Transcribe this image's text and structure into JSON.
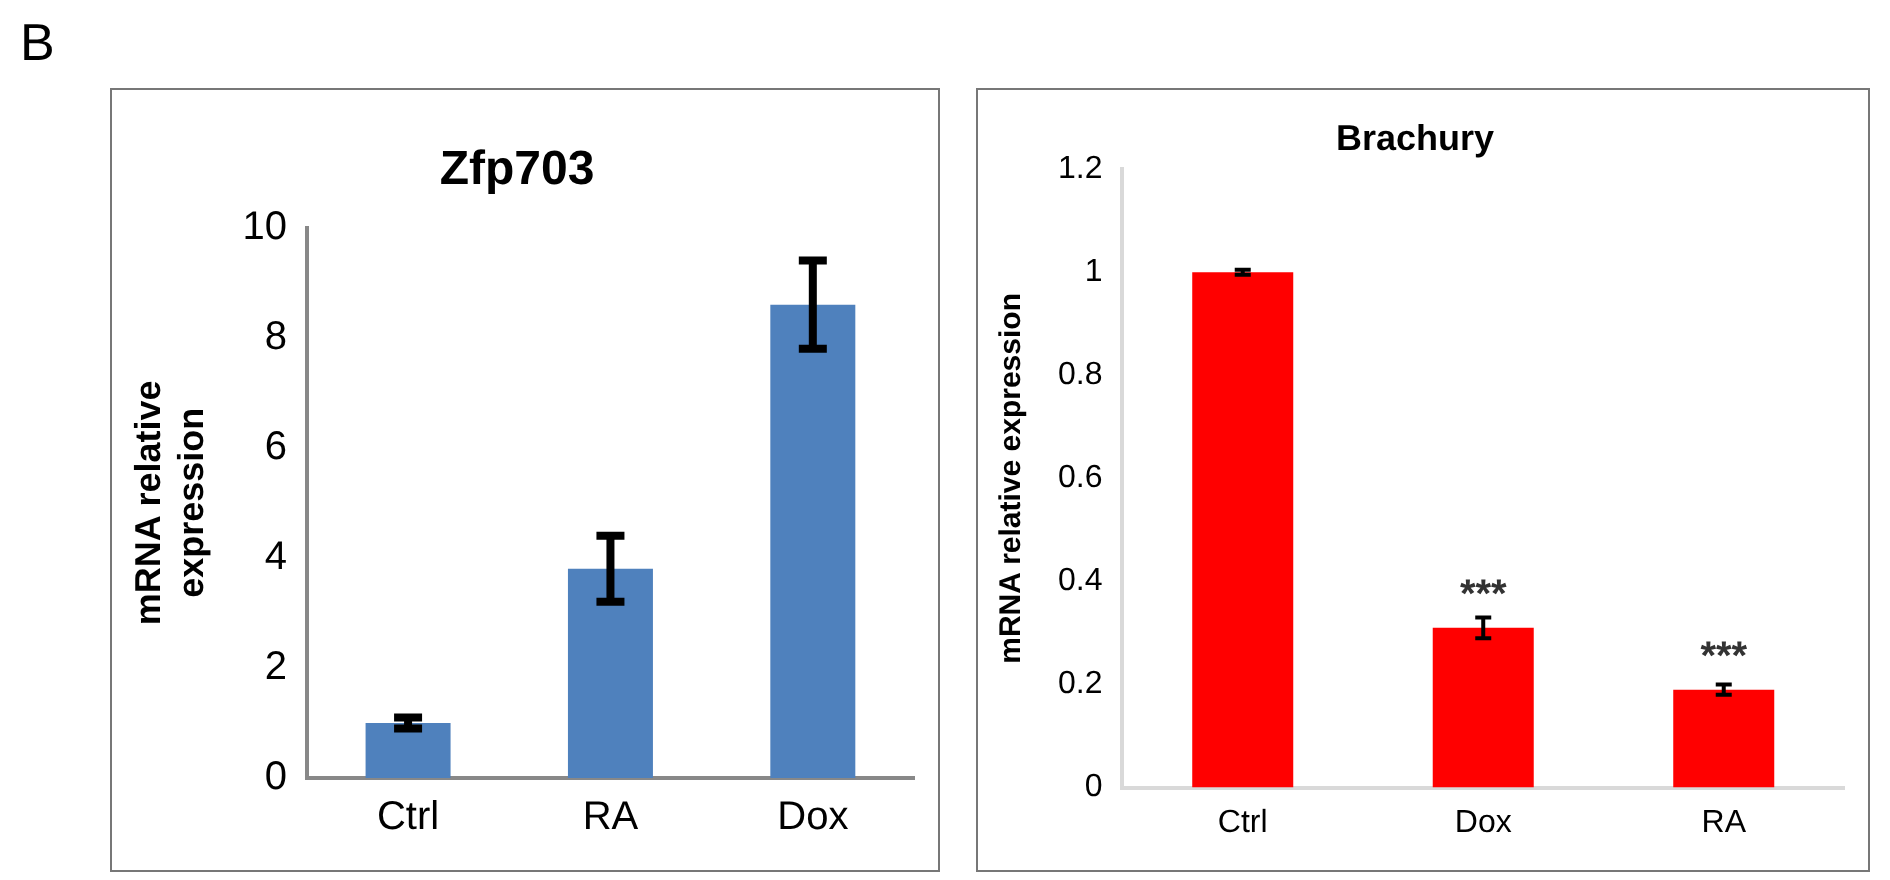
{
  "chart_data": [
    {
      "type": "bar",
      "title": "Zfp703",
      "ylabel": "mRNA relative expression",
      "annotations": [
        "B"
      ],
      "categories": [
        "Ctrl",
        "RA",
        "Dox"
      ],
      "series": [
        {
          "color": "#4f81bd",
          "values": [
            1.0,
            3.8,
            8.6
          ],
          "errors": [
            0.1,
            0.6,
            0.8
          ]
        }
      ],
      "ylim": [
        0,
        10
      ],
      "yticks": [
        0,
        2,
        4,
        6,
        8,
        10
      ],
      "grid": false
    },
    {
      "type": "bar",
      "title": "Brachury",
      "ylabel": "mRNA relative expression",
      "categories": [
        "Ctrl",
        "Dox",
        "RA"
      ],
      "annotations": [
        {
          "text": "***",
          "x": "Dox",
          "y": 0.31
        },
        {
          "text": "***",
          "x": "RA",
          "y": 0.19
        }
      ],
      "series": [
        {
          "color": "#ff0000",
          "values": [
            1.0,
            0.31,
            0.19
          ],
          "errors": [
            0.005,
            0.02,
            0.01
          ]
        }
      ],
      "ylim": [
        0,
        1.2
      ],
      "yticks": [
        0,
        0.2,
        0.4,
        0.6,
        0.8,
        1,
        1.2
      ],
      "grid": false
    }
  ]
}
